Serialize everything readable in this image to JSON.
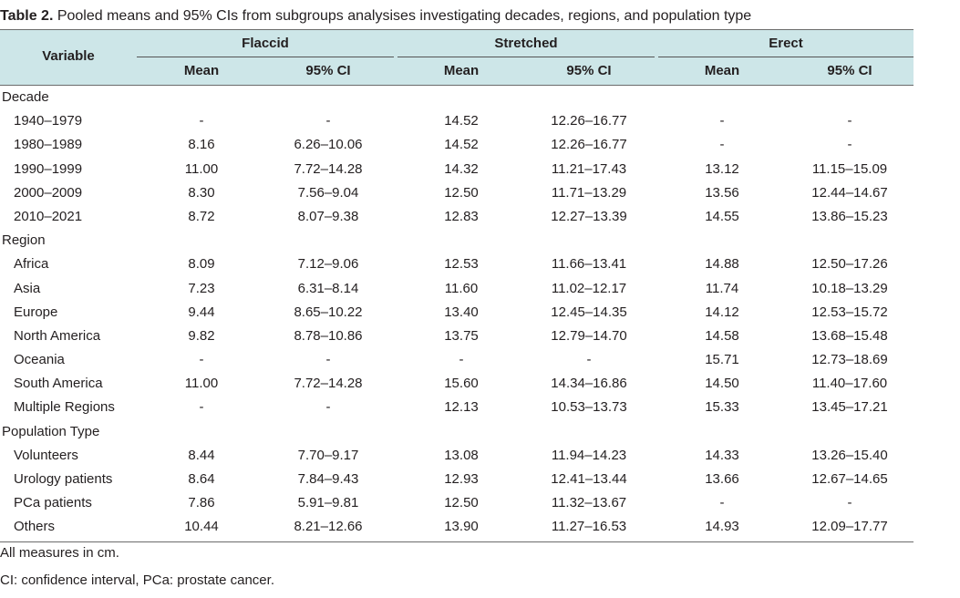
{
  "caption": {
    "label": "Table 2.",
    "text": " Pooled means and 95% CIs from subgroups analysises investigating decades, regions, and population type"
  },
  "header": {
    "variable": "Variable",
    "groups": [
      "Flaccid",
      "Stretched",
      "Erect"
    ],
    "subheaders": [
      "Mean",
      "95% CI",
      "Mean",
      "95% CI",
      "Mean",
      "95% CI"
    ]
  },
  "rows": [
    {
      "type": "section",
      "label": "Decade"
    },
    {
      "type": "data",
      "label": "1940–1979",
      "values": [
        "-",
        "-",
        "14.52",
        "12.26–16.77",
        "-",
        "-"
      ]
    },
    {
      "type": "data",
      "label": "1980–1989",
      "values": [
        "8.16",
        "6.26–10.06",
        "14.52",
        "12.26–16.77",
        "-",
        "-"
      ]
    },
    {
      "type": "data",
      "label": "1990–1999",
      "values": [
        "11.00",
        "7.72–14.28",
        "14.32",
        "11.21–17.43",
        "13.12",
        "11.15–15.09"
      ]
    },
    {
      "type": "data",
      "label": "2000–2009",
      "values": [
        "8.30",
        "7.56–9.04",
        "12.50",
        "11.71–13.29",
        "13.56",
        "12.44–14.67"
      ]
    },
    {
      "type": "data",
      "label": "2010–2021",
      "values": [
        "8.72",
        "8.07–9.38",
        "12.83",
        "12.27–13.39",
        "14.55",
        "13.86–15.23"
      ]
    },
    {
      "type": "section",
      "label": "Region"
    },
    {
      "type": "data",
      "label": "Africa",
      "values": [
        "8.09",
        "7.12–9.06",
        "12.53",
        "11.66–13.41",
        "14.88",
        "12.50–17.26"
      ]
    },
    {
      "type": "data",
      "label": "Asia",
      "values": [
        "7.23",
        "6.31–8.14",
        "11.60",
        "11.02–12.17",
        "11.74",
        "10.18–13.29"
      ]
    },
    {
      "type": "data",
      "label": "Europe",
      "values": [
        "9.44",
        "8.65–10.22",
        "13.40",
        "12.45–14.35",
        "14.12",
        "12.53–15.72"
      ]
    },
    {
      "type": "data",
      "label": "North America",
      "values": [
        "9.82",
        "8.78–10.86",
        "13.75",
        "12.79–14.70",
        "14.58",
        "13.68–15.48"
      ]
    },
    {
      "type": "data",
      "label": "Oceania",
      "values": [
        "-",
        "-",
        "-",
        "-",
        "15.71",
        "12.73–18.69"
      ]
    },
    {
      "type": "data",
      "label": "South America",
      "values": [
        "11.00",
        "7.72–14.28",
        "15.60",
        "14.34–16.86",
        "14.50",
        "11.40–17.60"
      ]
    },
    {
      "type": "data",
      "label": "Multiple Regions",
      "values": [
        "-",
        "-",
        "12.13",
        "10.53–13.73",
        "15.33",
        "13.45–17.21"
      ]
    },
    {
      "type": "section",
      "label": "Population Type"
    },
    {
      "type": "data",
      "label": "Volunteers",
      "values": [
        "8.44",
        "7.70–9.17",
        "13.08",
        "11.94–14.23",
        "14.33",
        "13.26–15.40"
      ]
    },
    {
      "type": "data",
      "label": "Urology patients",
      "values": [
        "8.64",
        "7.84–9.43",
        "12.93",
        "12.41–13.44",
        "13.66",
        "12.67–14.65"
      ]
    },
    {
      "type": "data",
      "label": "PCa patients",
      "values": [
        "7.86",
        "5.91–9.81",
        "12.50",
        "11.32–13.67",
        "-",
        "-"
      ]
    },
    {
      "type": "data",
      "label": "Others",
      "values": [
        "10.44",
        "8.21–12.66",
        "13.90",
        "11.27–16.53",
        "14.93",
        "12.09–17.77"
      ]
    }
  ],
  "notes": [
    "All measures in cm.",
    "CI: confidence interval, PCa: prostate cancer."
  ]
}
